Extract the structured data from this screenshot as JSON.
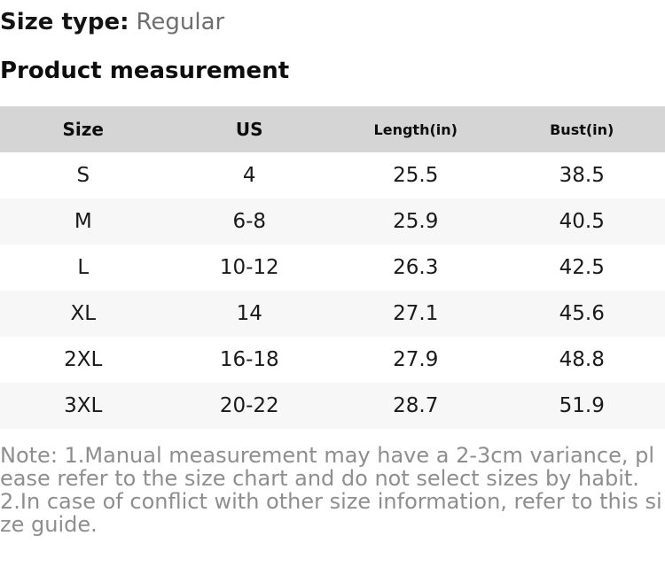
{
  "page": {
    "size_type_label": "Size type:",
    "size_type_value": "Regular",
    "section_title": "Product measurement",
    "note": "Note: 1.Manual measurement may have a 2-3cm variance, please refer to the size chart and do not select sizes by habit. 2.In case of conflict with other size information, refer to this size guide."
  },
  "table": {
    "columns": [
      {
        "label": "Size",
        "size": "lg"
      },
      {
        "label": "US",
        "size": "lg"
      },
      {
        "label": "Length(in)",
        "size": "sm"
      },
      {
        "label": "Bust(in)",
        "size": "sm"
      }
    ],
    "rows": [
      [
        "S",
        "4",
        "25.5",
        "38.5"
      ],
      [
        "M",
        "6-8",
        "25.9",
        "40.5"
      ],
      [
        "L",
        "10-12",
        "26.3",
        "42.5"
      ],
      [
        "XL",
        "14",
        "27.1",
        "45.6"
      ],
      [
        "2XL",
        "16-18",
        "27.9",
        "48.8"
      ],
      [
        "3XL",
        "20-22",
        "28.7",
        "51.9"
      ]
    ]
  },
  "colors": {
    "header_bg": "#d5d5d5",
    "row_alt_bg": "#f7f7f7",
    "body_text": "#141414",
    "size_type_value_text": "#6e6e6e",
    "note_text": "#8e8e8e"
  }
}
